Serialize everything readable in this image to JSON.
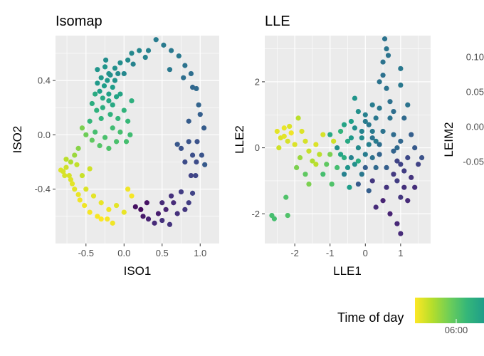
{
  "chart_data": [
    {
      "type": "scatter",
      "title": "Isomap",
      "xlabel": "ISO1",
      "ylabel": "ISO2",
      "xlim": [
        -0.9,
        1.25
      ],
      "ylim": [
        -0.8,
        0.73
      ],
      "xticks": [
        -0.5,
        0.0,
        0.5,
        1.0
      ],
      "xtick_labels": [
        "-0.5",
        "0.0",
        "0.5",
        "1.0"
      ],
      "yticks": [
        -0.4,
        0.0,
        0.4
      ],
      "ytick_labels": [
        "-0.4",
        "0.0",
        "0.4"
      ],
      "grid": true,
      "points": [
        [
          -0.83,
          -0.26,
          0.05
        ],
        [
          -0.8,
          -0.27,
          0.06
        ],
        [
          -0.78,
          -0.3,
          0.06
        ],
        [
          -0.76,
          -0.24,
          0.07
        ],
        [
          -0.72,
          -0.3,
          0.06
        ],
        [
          -0.7,
          -0.33,
          0.05
        ],
        [
          -0.68,
          -0.36,
          0.04
        ],
        [
          -0.65,
          -0.4,
          0.04
        ],
        [
          -0.6,
          -0.44,
          0.03
        ],
        [
          -0.58,
          -0.48,
          0.02
        ],
        [
          -0.52,
          -0.52,
          0.02
        ],
        [
          -0.45,
          -0.57,
          0.01
        ],
        [
          -0.35,
          -0.6,
          0.01
        ],
        [
          -0.3,
          -0.62,
          0.0
        ],
        [
          -0.22,
          -0.62,
          0.01
        ],
        [
          -0.15,
          -0.65,
          0.02
        ],
        [
          -0.1,
          -0.52,
          0.04
        ],
        [
          0.0,
          -0.57,
          0.03
        ],
        [
          0.05,
          -0.4,
          0.02
        ],
        [
          0.1,
          -0.45,
          0.01
        ],
        [
          0.15,
          -0.53,
          0.96
        ],
        [
          0.25,
          -0.6,
          0.93
        ],
        [
          0.32,
          -0.62,
          0.9
        ],
        [
          0.4,
          -0.65,
          0.88
        ],
        [
          0.5,
          -0.63,
          0.86
        ],
        [
          0.6,
          -0.66,
          0.85
        ],
        [
          0.7,
          -0.58,
          0.86
        ],
        [
          0.8,
          -0.55,
          0.84
        ],
        [
          0.85,
          -0.5,
          0.82
        ],
        [
          0.9,
          -0.43,
          0.8
        ],
        [
          0.94,
          -0.3,
          0.79
        ],
        [
          0.95,
          -0.2,
          0.77
        ],
        [
          0.9,
          -0.15,
          0.76
        ],
        [
          0.96,
          -0.05,
          0.75
        ],
        [
          0.85,
          -0.05,
          0.74
        ],
        [
          0.75,
          -0.1,
          0.75
        ],
        [
          0.7,
          -0.07,
          0.73
        ],
        [
          1.02,
          -0.15,
          0.74
        ],
        [
          1.06,
          -0.22,
          0.72
        ],
        [
          1.0,
          0.15,
          0.7
        ],
        [
          1.05,
          0.05,
          0.71
        ],
        [
          0.98,
          0.22,
          0.68
        ],
        [
          0.95,
          0.34,
          0.66
        ],
        [
          0.88,
          0.45,
          0.64
        ],
        [
          0.8,
          0.51,
          0.62
        ],
        [
          0.72,
          0.58,
          0.6
        ],
        [
          0.62,
          0.62,
          0.6
        ],
        [
          0.52,
          0.66,
          0.59
        ],
        [
          0.42,
          0.7,
          0.58
        ],
        [
          0.32,
          0.62,
          0.56
        ],
        [
          0.28,
          0.57,
          0.55
        ],
        [
          0.2,
          0.62,
          0.54
        ],
        [
          0.1,
          0.6,
          0.53
        ],
        [
          0.05,
          0.55,
          0.52
        ],
        [
          -0.05,
          0.53,
          0.51
        ],
        [
          -0.12,
          0.49,
          0.5
        ],
        [
          -0.2,
          0.45,
          0.49
        ],
        [
          -0.25,
          0.5,
          0.48
        ],
        [
          -0.3,
          0.42,
          0.47
        ],
        [
          -0.35,
          0.38,
          0.46
        ],
        [
          -0.32,
          0.32,
          0.44
        ],
        [
          -0.26,
          0.36,
          0.45
        ],
        [
          -0.2,
          0.3,
          0.43
        ],
        [
          -0.15,
          0.35,
          0.45
        ],
        [
          -0.1,
          0.28,
          0.42
        ],
        [
          -0.15,
          0.22,
          0.4
        ],
        [
          -0.2,
          0.25,
          0.41
        ],
        [
          -0.28,
          0.27,
          0.4
        ],
        [
          -0.38,
          0.3,
          0.39
        ],
        [
          -0.42,
          0.23,
          0.38
        ],
        [
          -0.36,
          0.18,
          0.36
        ],
        [
          -0.3,
          0.12,
          0.35
        ],
        [
          -0.18,
          0.15,
          0.36
        ],
        [
          -0.08,
          0.12,
          0.34
        ],
        [
          0.05,
          0.1,
          0.33
        ],
        [
          0.08,
          0.0,
          0.31
        ],
        [
          0.03,
          -0.05,
          0.3
        ],
        [
          -0.05,
          0.02,
          0.3
        ],
        [
          -0.1,
          -0.05,
          0.29
        ],
        [
          -0.2,
          -0.1,
          0.28
        ],
        [
          -0.32,
          -0.08,
          0.27
        ],
        [
          -0.42,
          -0.04,
          0.25
        ],
        [
          -0.5,
          0.0,
          0.22
        ],
        [
          -0.55,
          0.05,
          0.2
        ],
        [
          -0.6,
          -0.1,
          0.18
        ],
        [
          -0.65,
          -0.15,
          0.15
        ],
        [
          -0.7,
          -0.2,
          0.12
        ],
        [
          -0.76,
          -0.18,
          0.1
        ],
        [
          -0.62,
          -0.22,
          0.09
        ],
        [
          -0.55,
          -0.3,
          0.08
        ],
        [
          -0.45,
          -0.25,
          0.07
        ],
        [
          -0.5,
          -0.4,
          0.05
        ],
        [
          -0.4,
          -0.45,
          0.04
        ],
        [
          -0.3,
          -0.5,
          0.03
        ],
        [
          -0.2,
          -0.55,
          0.02
        ],
        [
          0.22,
          -0.55,
          0.97
        ],
        [
          0.3,
          -0.5,
          0.95
        ],
        [
          0.55,
          -0.55,
          0.9
        ],
        [
          0.65,
          -0.5,
          0.88
        ],
        [
          0.45,
          -0.58,
          0.92
        ],
        [
          -0.28,
          0.2,
          0.38
        ],
        [
          -0.22,
          0.4,
          0.47
        ],
        [
          -0.18,
          0.44,
          0.5
        ],
        [
          -0.12,
          0.4,
          0.49
        ],
        [
          -0.08,
          0.45,
          0.52
        ],
        [
          0.0,
          0.45,
          0.53
        ],
        [
          0.12,
          0.52,
          0.55
        ],
        [
          -0.35,
          0.48,
          0.48
        ],
        [
          -0.24,
          0.55,
          0.51
        ],
        [
          0.6,
          0.48,
          0.6
        ],
        [
          0.78,
          0.42,
          0.64
        ],
        [
          0.9,
          0.35,
          0.67
        ],
        [
          0.85,
          0.1,
          0.71
        ],
        [
          0.8,
          -0.2,
          0.77
        ],
        [
          0.88,
          -0.3,
          0.8
        ],
        [
          0.75,
          -0.42,
          0.82
        ],
        [
          0.62,
          -0.45,
          0.86
        ],
        [
          0.5,
          -0.5,
          0.88
        ],
        [
          -0.45,
          0.1,
          0.34
        ],
        [
          -0.38,
          0.02,
          0.3
        ],
        [
          -0.25,
          -0.02,
          0.29
        ],
        [
          -0.15,
          0.05,
          0.31
        ],
        [
          0.0,
          0.18,
          0.35
        ],
        [
          0.1,
          0.25,
          0.37
        ],
        [
          -0.05,
          0.3,
          0.42
        ]
      ]
    },
    {
      "type": "scatter",
      "title": "LLE",
      "xlabel": "LLE1",
      "ylabel": "LLE2",
      "xlim": [
        -2.85,
        1.85
      ],
      "ylim": [
        -2.9,
        3.4
      ],
      "xticks": [
        -2,
        -1,
        0,
        1
      ],
      "xtick_labels": [
        "-2",
        "-1",
        "0",
        "1"
      ],
      "yticks": [
        -2,
        0,
        2
      ],
      "ytick_labels": [
        "-2",
        "0",
        "2"
      ],
      "grid": true,
      "points": [
        [
          -2.65,
          -2.05,
          0.3
        ],
        [
          -2.58,
          -2.15,
          0.3
        ],
        [
          -2.2,
          -2.05,
          0.28
        ],
        [
          -2.25,
          -1.5,
          0.28
        ],
        [
          -2.5,
          0.5,
          0.04
        ],
        [
          -2.4,
          0.3,
          0.05
        ],
        [
          -2.3,
          0.6,
          0.03
        ],
        [
          -2.2,
          0.2,
          0.06
        ],
        [
          -2.1,
          0.45,
          0.02
        ],
        [
          -2.0,
          0.1,
          0.05
        ],
        [
          -1.9,
          0.9,
          0.1
        ],
        [
          -2.45,
          0.0,
          0.07
        ],
        [
          -2.3,
          0.35,
          0.04
        ],
        [
          -2.15,
          0.65,
          0.05
        ],
        [
          -1.85,
          -0.3,
          0.15
        ],
        [
          -1.95,
          -0.6,
          0.2
        ],
        [
          -1.7,
          -0.8,
          0.25
        ],
        [
          -1.6,
          -1.1,
          0.2
        ],
        [
          -1.5,
          -0.4,
          0.12
        ],
        [
          -1.6,
          -0.1,
          0.08
        ],
        [
          -1.4,
          0.1,
          0.05
        ],
        [
          -1.3,
          -0.2,
          0.1
        ],
        [
          -1.2,
          0.4,
          0.06
        ],
        [
          -1.1,
          -0.5,
          0.25
        ],
        [
          -1.0,
          -0.2,
          0.2
        ],
        [
          -0.9,
          0.2,
          0.07
        ],
        [
          -0.8,
          -0.6,
          0.3
        ],
        [
          -0.7,
          0.5,
          0.35
        ],
        [
          -0.6,
          -0.3,
          0.38
        ],
        [
          -0.5,
          0.2,
          0.4
        ],
        [
          -0.45,
          -1.2,
          0.45
        ],
        [
          -0.4,
          0.8,
          0.44
        ],
        [
          -0.3,
          -0.5,
          0.5
        ],
        [
          -0.3,
          1.5,
          0.48
        ],
        [
          -0.2,
          0.0,
          0.52
        ],
        [
          -0.2,
          1.1,
          0.5
        ],
        [
          -0.1,
          -0.8,
          0.6
        ],
        [
          -0.1,
          0.5,
          0.55
        ],
        [
          0.0,
          1.0,
          0.56
        ],
        [
          0.0,
          -0.2,
          0.58
        ],
        [
          0.1,
          0.7,
          0.6
        ],
        [
          0.1,
          -1.3,
          0.7
        ],
        [
          0.2,
          0.3,
          0.62
        ],
        [
          0.2,
          1.3,
          0.58
        ],
        [
          0.3,
          -0.6,
          0.66
        ],
        [
          0.3,
          0.9,
          0.6
        ],
        [
          0.4,
          0.1,
          0.64
        ],
        [
          0.4,
          2.0,
          0.62
        ],
        [
          0.5,
          0.5,
          0.62
        ],
        [
          0.5,
          2.6,
          0.62
        ],
        [
          0.55,
          3.3,
          0.62
        ],
        [
          0.6,
          3.0,
          0.61
        ],
        [
          0.65,
          2.8,
          0.62
        ],
        [
          0.5,
          2.2,
          0.63
        ],
        [
          0.6,
          1.8,
          0.62
        ],
        [
          0.7,
          1.4,
          0.63
        ],
        [
          0.8,
          1.1,
          0.64
        ],
        [
          0.8,
          0.4,
          0.65
        ],
        [
          0.9,
          0.0,
          0.66
        ],
        [
          0.9,
          -1.0,
          0.82
        ],
        [
          1.0,
          -1.5,
          0.84
        ],
        [
          1.0,
          -0.5,
          0.8
        ],
        [
          1.1,
          -1.2,
          0.86
        ],
        [
          1.2,
          -1.6,
          0.88
        ],
        [
          1.2,
          -0.3,
          0.78
        ],
        [
          1.3,
          -0.9,
          0.85
        ],
        [
          1.4,
          -1.2,
          0.87
        ],
        [
          1.3,
          0.4,
          0.7
        ],
        [
          1.5,
          -0.5,
          0.8
        ],
        [
          1.6,
          -0.3,
          0.75
        ],
        [
          1.2,
          1.3,
          0.62
        ],
        [
          1.1,
          0.9,
          0.66
        ],
        [
          1.0,
          1.9,
          0.6
        ],
        [
          1.0,
          2.4,
          0.6
        ],
        [
          0.3,
          -1.8,
          0.88
        ],
        [
          0.5,
          -1.6,
          0.9
        ],
        [
          0.7,
          -2.0,
          0.9
        ],
        [
          0.9,
          -2.3,
          0.89
        ],
        [
          1.0,
          -2.6,
          0.88
        ],
        [
          0.6,
          -1.2,
          0.85
        ],
        [
          0.2,
          -1.0,
          0.84
        ],
        [
          0.0,
          -0.6,
          0.7
        ],
        [
          -0.2,
          -1.1,
          0.72
        ],
        [
          -0.4,
          -0.3,
          0.55
        ],
        [
          -0.6,
          -0.8,
          0.56
        ],
        [
          -0.8,
          0.0,
          0.5
        ],
        [
          -1.0,
          0.4,
          0.4
        ],
        [
          -1.2,
          -0.8,
          0.3
        ],
        [
          -0.95,
          -1.1,
          0.28
        ],
        [
          0.8,
          -0.8,
          0.83
        ],
        [
          0.9,
          -0.4,
          0.8
        ],
        [
          1.1,
          -0.7,
          0.82
        ],
        [
          0.7,
          0.9,
          0.62
        ],
        [
          0.3,
          0.2,
          0.58
        ],
        [
          0.1,
          0.1,
          0.56
        ],
        [
          -0.1,
          0.3,
          0.52
        ],
        [
          -0.3,
          0.6,
          0.5
        ],
        [
          -0.5,
          -0.6,
          0.48
        ],
        [
          -0.7,
          -0.2,
          0.42
        ],
        [
          0.0,
          0.8,
          0.58
        ],
        [
          0.4,
          1.2,
          0.6
        ],
        [
          0.2,
          -0.3,
          0.63
        ],
        [
          0.6,
          -0.6,
          0.7
        ],
        [
          0.8,
          -0.1,
          0.68
        ],
        [
          -0.4,
          0.3,
          0.46
        ],
        [
          -0.6,
          0.7,
          0.42
        ],
        [
          -1.4,
          -0.5,
          0.1
        ],
        [
          -1.7,
          0.2,
          0.06
        ],
        [
          -1.8,
          0.5,
          0.05
        ],
        [
          -0.2,
          -0.4,
          0.38
        ],
        [
          0.4,
          -0.2,
          0.68
        ],
        [
          1.0,
          0.2,
          0.67
        ],
        [
          1.4,
          0.0,
          0.72
        ],
        [
          0.2,
          0.5,
          0.59
        ]
      ]
    },
    {
      "type": "scatter",
      "title": "",
      "xlabel": "",
      "ylabel": "LEIM2",
      "yticks": [
        0.1,
        0.05,
        0.0,
        -0.05
      ],
      "ytick_labels": [
        "0.10",
        "0.05",
        "0.00",
        "-0.05"
      ],
      "grid": true
    }
  ],
  "legend": {
    "title": "Time of day",
    "tick_label": "06:00",
    "colors": [
      "#fde725",
      "#b5de2b",
      "#6ece58",
      "#35b779",
      "#1f9e89"
    ]
  }
}
